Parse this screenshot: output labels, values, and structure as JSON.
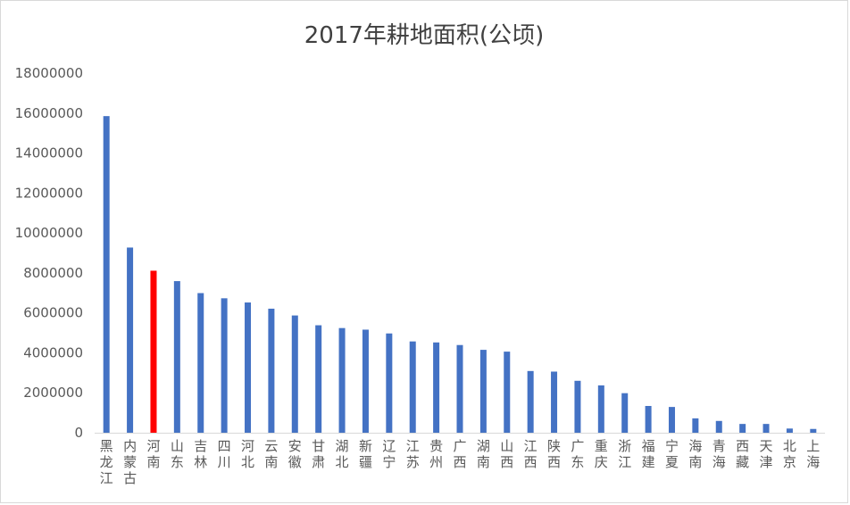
{
  "chart_data": {
    "type": "bar",
    "title": "2017年耕地面积(公顷)",
    "xlabel": "",
    "ylabel": "",
    "ylim": [
      0,
      18000000
    ],
    "yticks": [
      0,
      2000000,
      4000000,
      6000000,
      8000000,
      10000000,
      12000000,
      14000000,
      16000000,
      18000000
    ],
    "grid": false,
    "legend": "none",
    "default_color": "#4472c4",
    "highlight_color": "#ff0000",
    "highlight_category": "河南",
    "categories": [
      "黑龙江",
      "内蒙古",
      "河南",
      "山东",
      "吉林",
      "四川",
      "河北",
      "云南",
      "安徽",
      "甘肃",
      "湖北",
      "新疆",
      "辽宁",
      "江苏",
      "贵州",
      "广西",
      "湖南",
      "山西",
      "江西",
      "陕西",
      "广东",
      "重庆",
      "浙江",
      "福建",
      "宁夏",
      "海南",
      "青海",
      "西藏",
      "天津",
      "北京",
      "上海"
    ],
    "values": [
      15850000,
      9270000,
      8110000,
      7590000,
      6990000,
      6730000,
      6520000,
      6210000,
      5870000,
      5380000,
      5240000,
      5160000,
      4970000,
      4570000,
      4520000,
      4390000,
      4150000,
      4060000,
      3090000,
      3060000,
      2600000,
      2370000,
      1980000,
      1340000,
      1290000,
      720000,
      590000,
      440000,
      440000,
      210000,
      190000
    ]
  }
}
